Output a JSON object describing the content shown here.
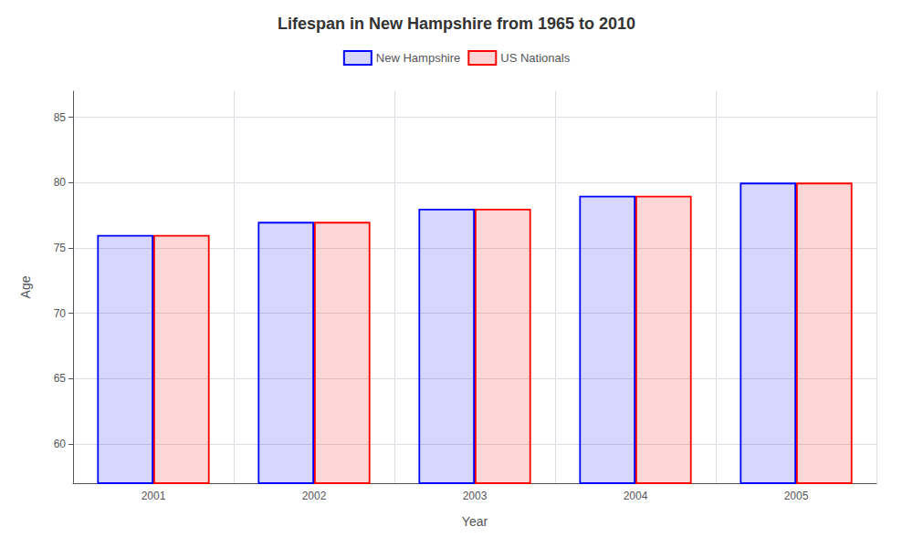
{
  "chart_data": {
    "type": "bar",
    "title": "Lifespan in New Hampshire from 1965 to 2010",
    "xlabel": "Year",
    "ylabel": "Age",
    "categories": [
      "2001",
      "2002",
      "2003",
      "2004",
      "2005"
    ],
    "series": [
      {
        "name": "New Hampshire",
        "color": "#0000ff",
        "values": [
          76,
          77,
          78,
          79,
          80
        ]
      },
      {
        "name": "US Nationals",
        "color": "#ff0000",
        "values": [
          76,
          77,
          78,
          79,
          80
        ]
      }
    ],
    "ylim": [
      57,
      87
    ],
    "yticks": [
      60,
      65,
      70,
      75,
      80,
      85
    ],
    "grid": true,
    "legend": "top"
  }
}
